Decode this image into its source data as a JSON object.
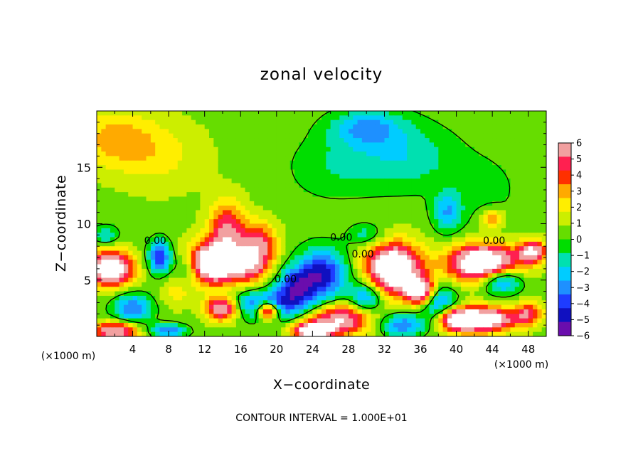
{
  "chart_data": {
    "type": "heatmap",
    "title": "zonal velocity",
    "xlabel": "X−coordinate",
    "ylabel": "Z−coordinate",
    "x_unit_left": "(×1000 m)",
    "x_unit_right": "(×1000 m)",
    "footer": "CONTOUR INTERVAL = 1.000E+01",
    "xlim": [
      0,
      50
    ],
    "ylim": [
      0,
      20
    ],
    "x_ticks": [
      4,
      8,
      12,
      16,
      20,
      24,
      28,
      32,
      36,
      40,
      44,
      48
    ],
    "y_ticks": [
      5,
      10,
      15
    ],
    "colorbar": {
      "ticks": [
        6,
        5,
        4,
        3,
        2,
        1,
        0,
        -1,
        -2,
        -3,
        -4,
        -5,
        -6
      ],
      "tick_labels": [
        "6",
        "5",
        "4",
        "3",
        "2",
        "1",
        "0",
        "−1",
        "−2",
        "−3",
        "−4",
        "−5",
        "−6"
      ],
      "range": [
        -6,
        6
      ],
      "colors_low_to_high": [
        "#6a0dad",
        "#1010c0",
        "#1e3cff",
        "#1e90ff",
        "#00ccff",
        "#00e0b0",
        "#00dd00",
        "#66dd00",
        "#ccee00",
        "#ffee00",
        "#ffaa00",
        "#ff3000",
        "#ff2050",
        "#f2a0a0"
      ],
      "over_color": "#ffffff"
    },
    "contour_labels": [
      {
        "text": "0.00",
        "x": 6.5,
        "y": 8.2
      },
      {
        "text": "0.00",
        "x": 21.0,
        "y": 4.8
      },
      {
        "text": "0.00",
        "x": 27.2,
        "y": 8.5
      },
      {
        "text": "0.00",
        "x": 29.6,
        "y": 7.0
      },
      {
        "text": "0.00",
        "x": 44.2,
        "y": 8.2
      }
    ],
    "features": [
      {
        "x": 2,
        "z": 17.5,
        "v": 2.3,
        "sx": 4.5,
        "sz": 2.5
      },
      {
        "x": 7,
        "z": 16,
        "v": 1.3,
        "sx": 5,
        "sz": 3
      },
      {
        "x": 30,
        "z": 18.5,
        "v": -3,
        "sx": 4,
        "sz": 1.6
      },
      {
        "x": 34,
        "z": 16,
        "v": -2.2,
        "sx": 6,
        "sz": 3
      },
      {
        "x": 26,
        "z": 15,
        "v": -1.2,
        "sx": 5,
        "sz": 3
      },
      {
        "x": 43,
        "z": 13,
        "v": -1,
        "sx": 4,
        "sz": 3
      },
      {
        "x": 39,
        "z": 11,
        "v": -3,
        "sx": 1.6,
        "sz": 1.8
      },
      {
        "x": 44,
        "z": 10.5,
        "v": 3.5,
        "sx": 1.2,
        "sz": 0.8
      },
      {
        "x": 1.5,
        "z": 6,
        "v": 8,
        "sx": 2.5,
        "sz": 1.5
      },
      {
        "x": 1,
        "z": 9,
        "v": -2.5,
        "sx": 1.4,
        "sz": 0.8
      },
      {
        "x": 7,
        "z": 7,
        "v": -5,
        "sx": 1.3,
        "sz": 1.5
      },
      {
        "x": 13,
        "z": 6.5,
        "v": 9,
        "sx": 3,
        "sz": 1.8
      },
      {
        "x": 14.5,
        "z": 9.5,
        "v": 4.5,
        "sx": 2,
        "sz": 2.5
      },
      {
        "x": 18,
        "z": 8,
        "v": 5,
        "sx": 2,
        "sz": 2
      },
      {
        "x": 17,
        "z": 6,
        "v": 3,
        "sx": 2,
        "sz": 1.5
      },
      {
        "x": 10,
        "z": 6,
        "v": -3,
        "sx": 1.4,
        "sz": 1.5
      },
      {
        "x": 25,
        "z": 5.5,
        "v": -5.5,
        "sx": 2.8,
        "sz": 2.2
      },
      {
        "x": 19,
        "z": 2.8,
        "v": -5,
        "sx": 5,
        "sz": 1.3
      },
      {
        "x": 14,
        "z": 2.5,
        "v": 7,
        "sx": 2,
        "sz": 1.1
      },
      {
        "x": 19,
        "z": 2.3,
        "v": 8,
        "sx": 1.2,
        "sz": 0.8
      },
      {
        "x": 22,
        "z": 4.5,
        "v": -4,
        "sx": 2,
        "sz": 1.5
      },
      {
        "x": 27,
        "z": 1.5,
        "v": 6,
        "sx": 3.5,
        "sz": 1.4
      },
      {
        "x": 24,
        "z": 0.5,
        "v": 8,
        "sx": 2,
        "sz": 0.7
      },
      {
        "x": 33,
        "z": 6,
        "v": 9,
        "sx": 3,
        "sz": 2.2
      },
      {
        "x": 36,
        "z": 4,
        "v": 7,
        "sx": 1.6,
        "sz": 1.2
      },
      {
        "x": 30,
        "z": 3.5,
        "v": -4,
        "sx": 1.8,
        "sz": 1.4
      },
      {
        "x": 34,
        "z": 1,
        "v": -4,
        "sx": 2.5,
        "sz": 1
      },
      {
        "x": 38,
        "z": 3,
        "v": -4,
        "sx": 2,
        "sz": 1.5
      },
      {
        "x": 43,
        "z": 6.5,
        "v": 9,
        "sx": 3.8,
        "sz": 1.6
      },
      {
        "x": 45,
        "z": 5,
        "v": -5,
        "sx": 2.2,
        "sz": 1.2
      },
      {
        "x": 43,
        "z": 1.5,
        "v": 8,
        "sx": 3.5,
        "sz": 1.1
      },
      {
        "x": 40,
        "z": 1.5,
        "v": 5,
        "sx": 2,
        "sz": 1
      },
      {
        "x": 48.5,
        "z": 7.5,
        "v": 6,
        "sx": 1.5,
        "sz": 1
      },
      {
        "x": 48,
        "z": 2,
        "v": 4,
        "sx": 1.5,
        "sz": 1
      },
      {
        "x": 4,
        "z": 2.5,
        "v": -4,
        "sx": 2.2,
        "sz": 1.3
      },
      {
        "x": 2,
        "z": 0.5,
        "v": 6,
        "sx": 2.5,
        "sz": 0.8
      },
      {
        "x": 8,
        "z": 0.5,
        "v": -4,
        "sx": 2,
        "sz": 0.6
      },
      {
        "x": 9,
        "z": 4,
        "v": 1.5,
        "sx": 2,
        "sz": 1.5
      },
      {
        "x": 30,
        "z": 9,
        "v": -2,
        "sx": 2,
        "sz": 1
      }
    ]
  }
}
